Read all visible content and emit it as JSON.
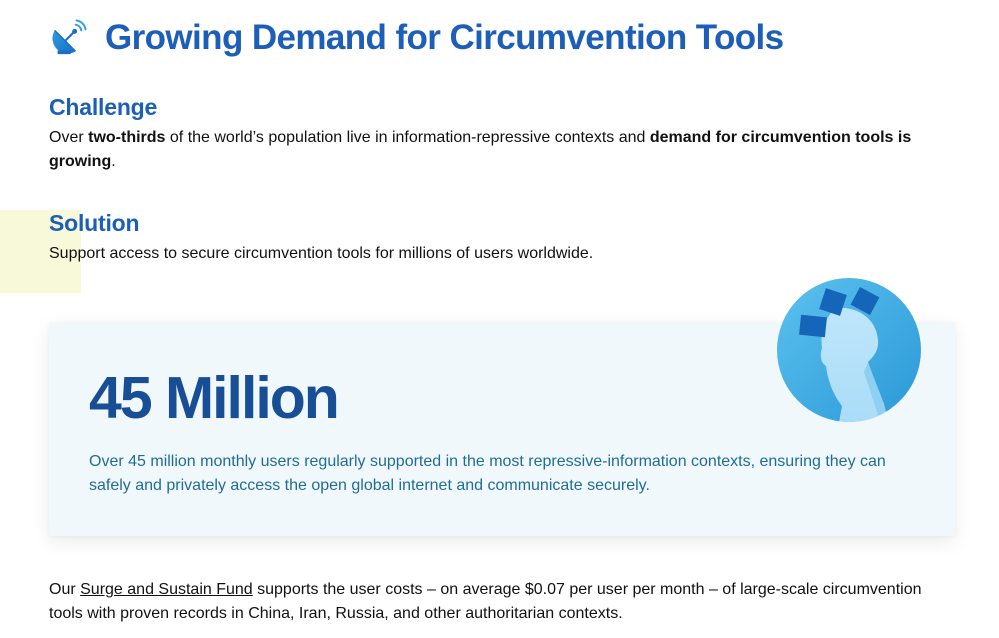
{
  "header": {
    "title": "Growing Demand for Circumvention Tools",
    "icon": "satellite-dish-icon"
  },
  "challenge": {
    "heading": "Challenge",
    "text_1": "Over ",
    "bold_1": "two-thirds",
    "text_2": " of the world’s population live in information-repressive contexts and ",
    "bold_2": "demand for circumvention tools is growing",
    "text_3": "."
  },
  "solution": {
    "heading": "Solution",
    "text": "Support access to secure circumvention tools for millions of users worldwide."
  },
  "stat": {
    "number": "45 Million",
    "description": "Over 45 million monthly users regularly supported in the most repressive-information contexts, ensuring they can safely and privately access the open global internet and communicate securely.",
    "illustration": "user-silhouette-icon"
  },
  "fund": {
    "text_1": "Our ",
    "link": "Surge and Sustain Fund",
    "text_2": " supports the user costs – on average $0.07 per user per month – of large-scale circumvention tools with proven records in China, Iran, Russia, and other authoritarian contexts."
  },
  "colors": {
    "heading_blue": "#1d5fb8",
    "stat_blue": "#174e96",
    "stat_text": "#1f6d96",
    "card_bg": "#f1f8fc",
    "deco_yellow": "#f7f9d9"
  }
}
